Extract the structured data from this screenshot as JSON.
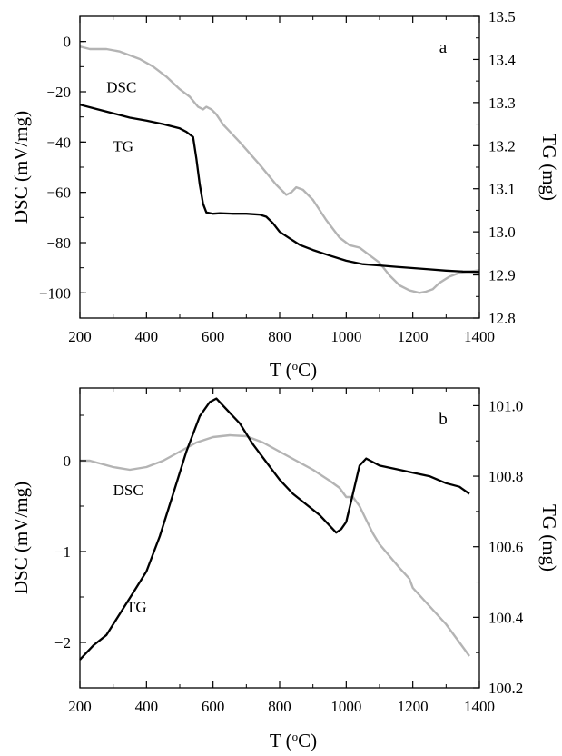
{
  "chart_data": [
    {
      "type": "line",
      "panel_label": "a",
      "xlabel_base": "T (",
      "xlabel_sup": "o",
      "xlabel_unit": "C)",
      "ylabel_left": "DSC (mV/mg)",
      "ylabel_right": "TG (mg)",
      "xlim": [
        200,
        1400
      ],
      "ylim_left": [
        -110,
        10
      ],
      "ylim_right": [
        12.8,
        13.5
      ],
      "x_ticks": [
        200,
        400,
        600,
        800,
        1000,
        1200,
        1400
      ],
      "y_left_ticks": [
        0,
        -20,
        -40,
        -60,
        -80,
        -100
      ],
      "y_right_ticks": [
        12.8,
        12.9,
        13.0,
        13.1,
        13.2,
        13.3,
        13.4,
        13.5
      ],
      "grid": false,
      "series": [
        {
          "name": "DSC",
          "axis": "left",
          "color": "#b4b4b4",
          "label_x": 325,
          "label_y": -18,
          "x": [
            200,
            230,
            280,
            320,
            380,
            420,
            460,
            500,
            530,
            555,
            570,
            580,
            595,
            610,
            630,
            680,
            740,
            790,
            820,
            835,
            850,
            870,
            900,
            940,
            980,
            1010,
            1040,
            1070,
            1100,
            1130,
            1160,
            1190,
            1220,
            1240,
            1260,
            1280,
            1310,
            1340,
            1370,
            1400
          ],
          "values": [
            -2,
            -3,
            -3,
            -4,
            -7,
            -10,
            -14,
            -19,
            -22,
            -26,
            -27,
            -26,
            -27,
            -29,
            -33,
            -40,
            -49,
            -57,
            -61,
            -60,
            -58,
            -59,
            -63,
            -71,
            -78,
            -81,
            -82,
            -85,
            -88,
            -93,
            -97,
            -99,
            -100,
            -99.5,
            -98.5,
            -96,
            -93.5,
            -92,
            -91.5,
            -91
          ]
        },
        {
          "name": "TG",
          "axis": "right",
          "color": "#000000",
          "label_x": 330,
          "label_y": 13.2,
          "x": [
            200,
            250,
            300,
            350,
            400,
            450,
            500,
            520,
            540,
            550,
            560,
            570,
            580,
            600,
            620,
            660,
            700,
            740,
            760,
            780,
            800,
            830,
            860,
            900,
            950,
            1000,
            1050,
            1100,
            1150,
            1200,
            1250,
            1300,
            1350,
            1400
          ],
          "values": [
            13.295,
            13.285,
            13.275,
            13.265,
            13.258,
            13.25,
            13.24,
            13.232,
            13.22,
            13.17,
            13.11,
            13.065,
            13.045,
            13.042,
            13.043,
            13.042,
            13.042,
            13.04,
            13.035,
            13.02,
            13.0,
            12.985,
            12.97,
            12.958,
            12.945,
            12.933,
            12.925,
            12.922,
            12.919,
            12.916,
            12.913,
            12.91,
            12.908,
            12.907
          ]
        }
      ]
    },
    {
      "type": "line",
      "panel_label": "b",
      "xlabel_base": "T (",
      "xlabel_sup": "o",
      "xlabel_unit": "C)",
      "ylabel_left": "DSC (mV/mg)",
      "ylabel_right": "TG (mg)",
      "xlim": [
        200,
        1400
      ],
      "ylim_left": [
        -2.5,
        0.8
      ],
      "ylim_right": [
        100.2,
        101.05
      ],
      "x_ticks": [
        200,
        400,
        600,
        800,
        1000,
        1200,
        1400
      ],
      "y_left_ticks": [
        0,
        -1,
        -2
      ],
      "y_right_ticks": [
        100.2,
        100.4,
        100.6,
        100.8,
        101.0
      ],
      "grid": false,
      "series": [
        {
          "name": "DSC",
          "axis": "left",
          "color": "#b4b4b4",
          "label_x": 345,
          "label_y": -0.32,
          "x": [
            200,
            230,
            260,
            300,
            350,
            400,
            450,
            500,
            550,
            600,
            650,
            700,
            750,
            800,
            850,
            900,
            950,
            980,
            1000,
            1020,
            1040,
            1060,
            1080,
            1100,
            1130,
            1160,
            1190,
            1200,
            1250,
            1300,
            1350,
            1370
          ],
          "values": [
            0.0,
            0.0,
            -0.03,
            -0.07,
            -0.1,
            -0.07,
            0.0,
            0.1,
            0.2,
            0.26,
            0.28,
            0.27,
            0.2,
            0.1,
            0.0,
            -0.1,
            -0.22,
            -0.3,
            -0.4,
            -0.4,
            -0.5,
            -0.65,
            -0.8,
            -0.92,
            -1.05,
            -1.18,
            -1.3,
            -1.4,
            -1.6,
            -1.8,
            -2.05,
            -2.15
          ]
        },
        {
          "name": "TG",
          "axis": "right",
          "color": "#000000",
          "label_x": 370,
          "label_y": 100.43,
          "x": [
            200,
            240,
            280,
            320,
            360,
            400,
            440,
            480,
            520,
            560,
            590,
            610,
            630,
            650,
            680,
            720,
            760,
            800,
            840,
            880,
            920,
            950,
            970,
            985,
            1000,
            1020,
            1040,
            1060,
            1080,
            1100,
            1150,
            1200,
            1250,
            1300,
            1340,
            1370
          ],
          "values": [
            100.28,
            100.32,
            100.35,
            100.41,
            100.47,
            100.53,
            100.63,
            100.75,
            100.87,
            100.97,
            101.01,
            101.02,
            101.0,
            100.98,
            100.95,
            100.89,
            100.84,
            100.79,
            100.75,
            100.72,
            100.69,
            100.66,
            100.64,
            100.65,
            100.67,
            100.75,
            100.83,
            100.85,
            100.84,
            100.83,
            100.82,
            100.81,
            100.8,
            100.78,
            100.77,
            100.75
          ]
        }
      ]
    }
  ]
}
